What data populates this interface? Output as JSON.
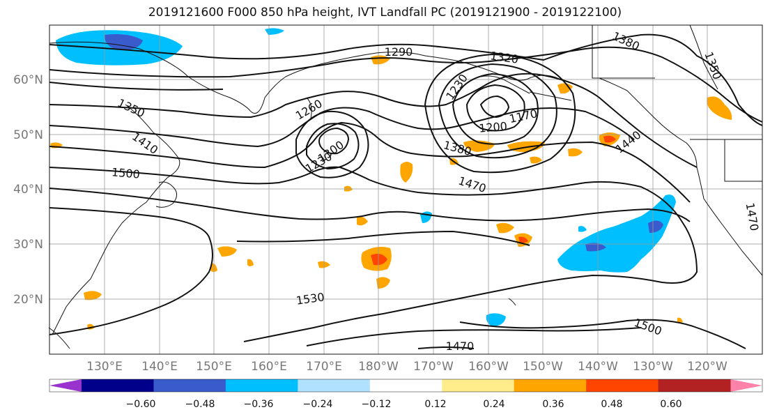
{
  "title": "2019121600 F000 850 hPa height, IVT Landfall PC (2019121900 - 2019122100)",
  "map": {
    "lat_labels": [
      "60°N",
      "50°N",
      "40°N",
      "30°N",
      "20°N"
    ],
    "lon_labels": [
      "130°E",
      "140°E",
      "150°E",
      "160°E",
      "170°E",
      "180°W",
      "170°W",
      "160°W",
      "150°W",
      "140°W",
      "130°W",
      "120°W"
    ],
    "contour_labels": [
      "1290",
      "1320",
      "1380",
      "1350",
      "1230",
      "1260",
      "1170",
      "1200",
      "1350",
      "1410",
      "1500",
      "1300",
      "1230",
      "1380",
      "1440",
      "1470",
      "1530",
      "1500",
      "1470",
      "1470"
    ]
  },
  "colorbar": {
    "ticks": [
      "−0.60",
      "−0.48",
      "−0.36",
      "−0.24",
      "−0.12",
      "0.12",
      "0.24",
      "0.36",
      "0.48",
      "0.60"
    ],
    "colors": [
      "#9a32cd",
      "#00008b",
      "#3a5bcc",
      "#00bfff",
      "#b0e2ff",
      "#ffffff",
      "#ffec8b",
      "#ffa500",
      "#ff4500",
      "#b22222",
      "#ff82ab"
    ]
  }
}
